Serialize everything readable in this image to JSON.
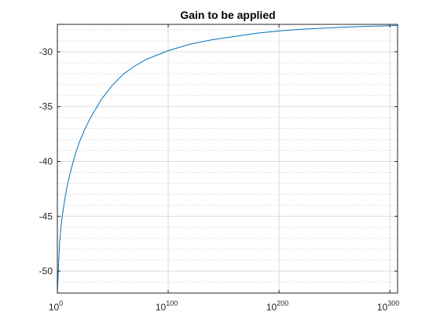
{
  "chart_data": {
    "type": "line",
    "title": "Gain to be applied",
    "xlabel": "",
    "ylabel": "",
    "x_scale": "log",
    "x_tick_labels": [
      {
        "base": "10",
        "exp": "0"
      },
      {
        "base": "10",
        "exp": "100"
      },
      {
        "base": "10",
        "exp": "200"
      },
      {
        "base": "10",
        "exp": "300"
      }
    ],
    "y_tick_labels": [
      "-30",
      "-35",
      "-40",
      "-45",
      "-50"
    ],
    "xlim_log10": [
      0,
      307
    ],
    "ylim": [
      -52,
      -27.5
    ],
    "grid": true,
    "minor_grid": true,
    "series": [
      {
        "color": "#0072bd",
        "note_x": "log10 of x value",
        "x_log10": [
          0,
          2,
          4,
          6,
          8,
          10,
          13,
          16,
          20,
          25,
          30,
          40,
          50,
          60,
          70,
          80,
          90,
          100,
          120,
          140,
          160,
          180,
          200,
          220,
          240,
          260,
          280,
          300,
          307
        ],
        "y": [
          -52,
          -47.4,
          -45.3,
          -43.9,
          -42.7,
          -41.7,
          -40.5,
          -39.4,
          -38.2,
          -37.0,
          -36.0,
          -34.3,
          -33.0,
          -32.0,
          -31.3,
          -30.7,
          -30.3,
          -29.9,
          -29.3,
          -28.9,
          -28.6,
          -28.3,
          -28.1,
          -27.95,
          -27.85,
          -27.75,
          -27.68,
          -27.62,
          -27.6
        ]
      }
    ]
  }
}
